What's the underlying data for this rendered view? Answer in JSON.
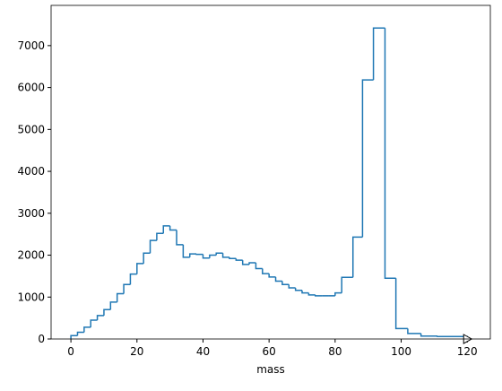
{
  "chart_data": {
    "type": "histogram",
    "xlabel": "mass",
    "color": "#1f77b4",
    "bins": [
      0,
      2,
      4,
      6,
      8,
      10,
      12,
      14,
      16,
      18,
      20,
      22,
      24,
      26,
      28,
      30,
      32,
      34,
      36,
      38,
      40,
      42,
      44,
      46,
      48,
      50,
      52,
      54,
      56,
      58,
      60,
      62,
      64,
      66,
      68,
      70,
      72,
      74,
      76,
      78,
      80,
      82,
      85.4,
      88.3,
      91.6,
      95.1,
      98.4,
      102,
      106,
      111,
      120
    ],
    "counts": [
      80,
      160,
      280,
      450,
      560,
      700,
      880,
      1080,
      1300,
      1550,
      1800,
      2050,
      2350,
      2520,
      2700,
      2600,
      2250,
      1950,
      2030,
      2020,
      1930,
      2000,
      2050,
      1950,
      1920,
      1880,
      1780,
      1820,
      1680,
      1560,
      1480,
      1380,
      1300,
      1220,
      1160,
      1100,
      1050,
      1030,
      1030,
      1030,
      1100,
      1470,
      2430,
      6180,
      7420,
      1450,
      250,
      130,
      70,
      60
    ],
    "xlim": [
      -6,
      127
    ],
    "ylim": [
      0,
      7960
    ],
    "xticks": [
      0,
      20,
      40,
      60,
      80,
      100,
      120
    ],
    "yticks": [
      0,
      1000,
      2000,
      3000,
      4000,
      5000,
      6000,
      7000
    ]
  }
}
